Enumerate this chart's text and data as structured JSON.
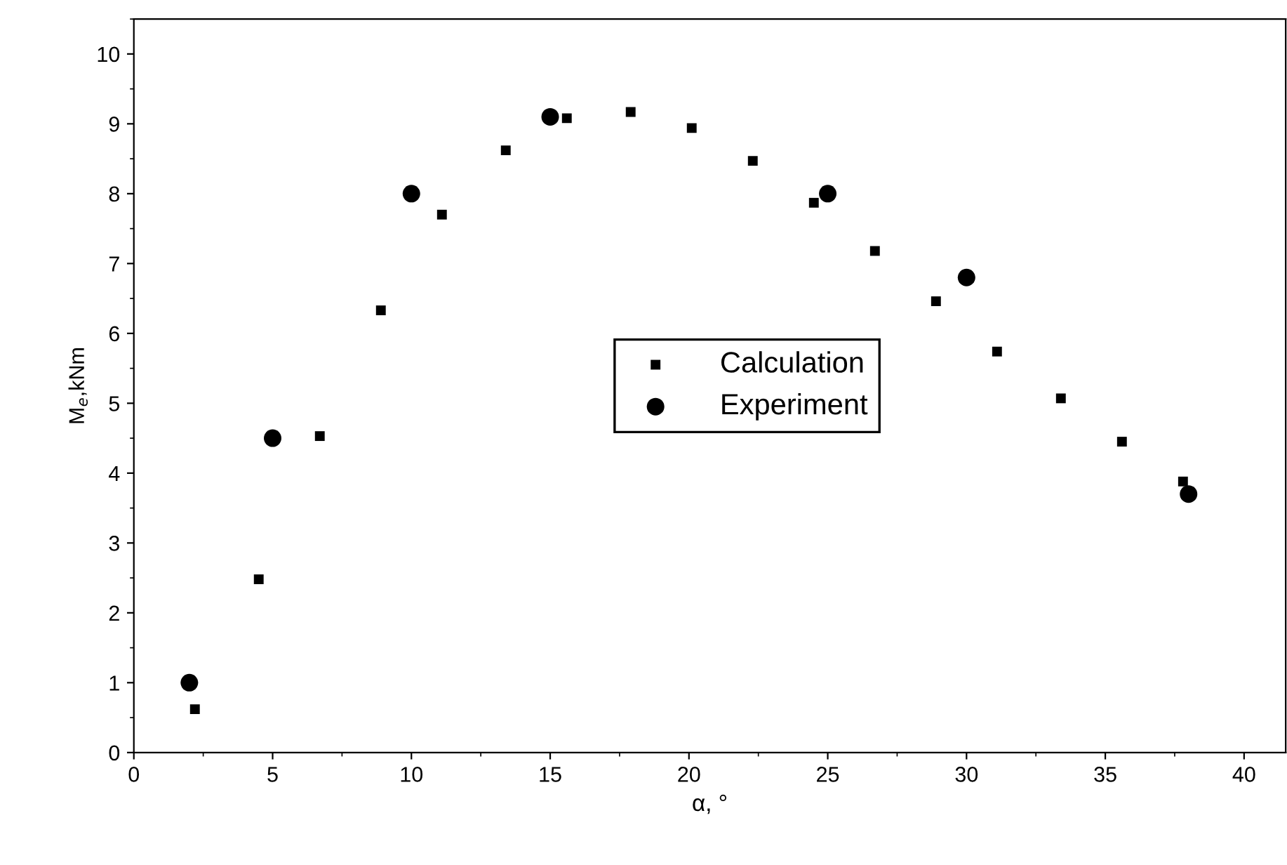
{
  "chart_data": {
    "type": "scatter",
    "xlabel": "α, °",
    "ylabel": "M$_{e}$,kNm",
    "xlim": [
      0,
      41.5
    ],
    "xticks": [
      0,
      5,
      10,
      15,
      20,
      25,
      30,
      35,
      40
    ],
    "ylim": [
      0,
      10.5
    ],
    "yticks": [
      0,
      1,
      2,
      3,
      4,
      5,
      6,
      7,
      8,
      9,
      10
    ],
    "grid": false,
    "legend": "right",
    "series": [
      {
        "name": "Calculation",
        "color": "#000000",
        "marker": "square",
        "x": [
          2.2,
          4.5,
          6.7,
          8.9,
          11.1,
          13.4,
          15.6,
          17.9,
          20.1,
          22.3,
          24.5,
          26.7,
          28.9,
          31.1,
          33.4,
          35.6,
          37.8
        ],
        "values": [
          0.62,
          2.48,
          4.53,
          6.33,
          7.7,
          8.62,
          9.08,
          9.17,
          8.94,
          8.47,
          7.87,
          7.18,
          6.46,
          5.74,
          5.07,
          4.45,
          3.88
        ]
      },
      {
        "name": "Experiment",
        "color": "#000000",
        "marker": "circle",
        "x": [
          2,
          5,
          10,
          15,
          25,
          30,
          38
        ],
        "values": [
          1.0,
          4.5,
          8.0,
          9.1,
          8.0,
          6.8,
          3.7
        ]
      }
    ]
  }
}
